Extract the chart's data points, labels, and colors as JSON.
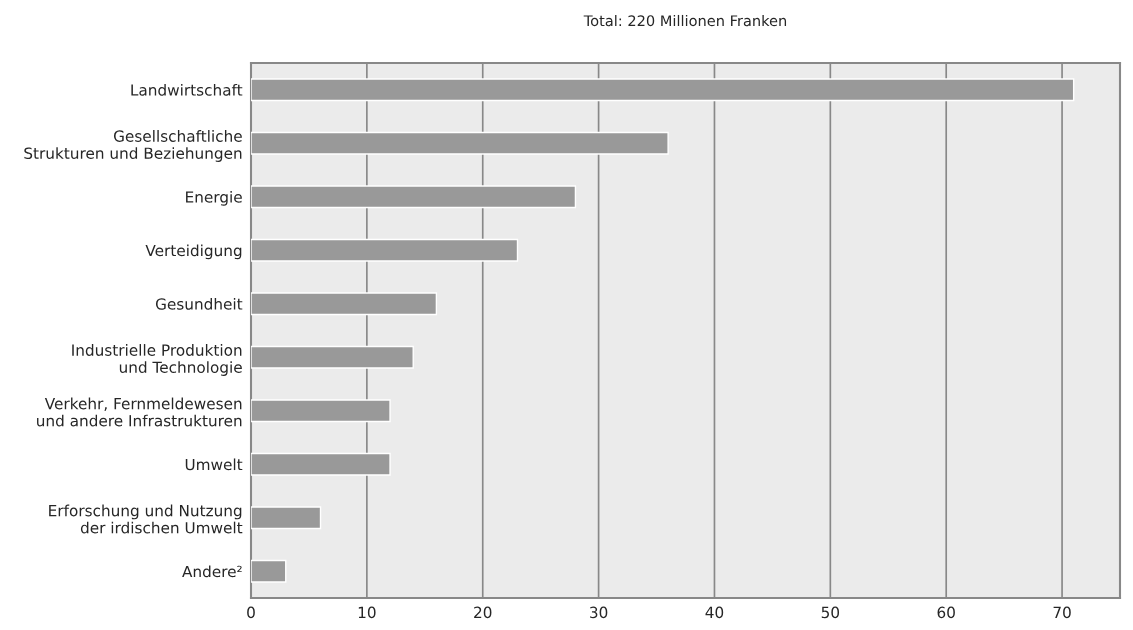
{
  "chart_data": {
    "type": "bar",
    "orientation": "horizontal",
    "title": "Total: 220 Millionen Franken",
    "categories": [
      "Landwirtschaft",
      "Gesellschaftliche\nStrukturen und Beziehungen",
      "Energie",
      "Verteidigung",
      "Gesundheit",
      "Industrielle Produktion\nund Technologie",
      "Verkehr, Fernmeldewesen\nund andere Infrastrukturen",
      "Umwelt",
      "Erforschung und Nutzung\nder irdischen Umwelt",
      "Andere²"
    ],
    "values": [
      71,
      36,
      28,
      23,
      16,
      14,
      12,
      12,
      6,
      3
    ],
    "color": "#999999",
    "xlim": [
      0,
      75
    ],
    "xticks": [
      0,
      10,
      20,
      30,
      40,
      50,
      60,
      70
    ],
    "grid": "x"
  }
}
